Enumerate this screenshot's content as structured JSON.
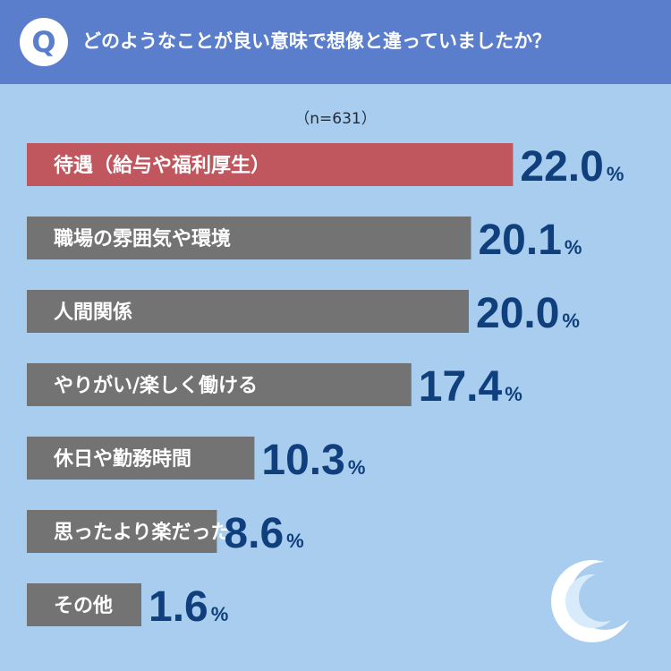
{
  "header": {
    "badge": "Q",
    "question": "どのようなことが良い意味で想像と違っていましたか？"
  },
  "sample_size": "（n=631）",
  "colors": {
    "header_bg": "#5a7ecb",
    "background": "#a9cdee",
    "highlight_bar": "#c0565e",
    "bar": "#737373",
    "value_text": "#0f3f7d"
  },
  "chart_data": {
    "type": "bar",
    "orientation": "horizontal",
    "title": "",
    "xlabel": "",
    "ylabel": "",
    "unit": "%",
    "categories": [
      "待遇（給与や福利厚生）",
      "職場の雰囲気や環境",
      "人間関係",
      "やりがい/楽しく働ける",
      "休日や勤務時間",
      "思ったより楽だった",
      "その他"
    ],
    "values": [
      22.0,
      20.1,
      20.0,
      17.4,
      10.3,
      8.6,
      1.6
    ],
    "value_labels": [
      "22.0",
      "20.1",
      "20.0",
      "17.4",
      "10.3",
      "8.6",
      "1.6"
    ],
    "highlight_index": 0,
    "grid": false,
    "legend": "none"
  },
  "logo_icon": "crescent-logo-icon"
}
